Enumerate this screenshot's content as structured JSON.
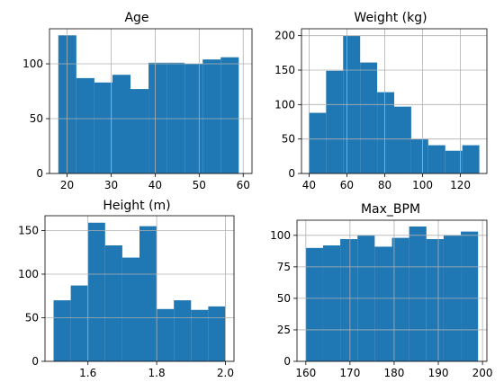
{
  "chart_data": [
    {
      "type": "bar",
      "title": "Age",
      "bin_edges": [
        18,
        22.1,
        26.2,
        30.3,
        34.4,
        38.5,
        42.6,
        46.7,
        50.8,
        54.9,
        59
      ],
      "values": [
        126,
        87,
        83,
        90,
        77,
        101,
        101,
        100,
        104,
        106
      ],
      "xlim": [
        16,
        62
      ],
      "ylim": [
        0,
        132
      ],
      "xticks": [
        20,
        30,
        40,
        50,
        60
      ],
      "yticks": [
        0,
        50,
        100
      ],
      "xticklabels": [
        "20",
        "30",
        "40",
        "50",
        "60"
      ],
      "yticklabels": [
        "0",
        "50",
        "100"
      ],
      "grid": true,
      "xlabel": "",
      "ylabel": ""
    },
    {
      "type": "bar",
      "title": "Weight (kg)",
      "bin_edges": [
        40,
        49,
        58,
        67,
        76,
        85,
        94,
        103,
        112,
        121,
        130
      ],
      "values": [
        88,
        149,
        200,
        161,
        118,
        97,
        50,
        41,
        33,
        41
      ],
      "xlim": [
        36,
        134
      ],
      "ylim": [
        0,
        210
      ],
      "xticks": [
        40,
        60,
        80,
        100,
        120
      ],
      "yticks": [
        0,
        50,
        100,
        150,
        200
      ],
      "xticklabels": [
        "40",
        "60",
        "80",
        "100",
        "120"
      ],
      "yticklabels": [
        "0",
        "50",
        "100",
        "150",
        "200"
      ],
      "grid": true,
      "xlabel": "",
      "ylabel": ""
    },
    {
      "type": "bar",
      "title": "Height (m)",
      "bin_edges": [
        1.5,
        1.55,
        1.6,
        1.65,
        1.7,
        1.75,
        1.8,
        1.85,
        1.9,
        1.95,
        2.0
      ],
      "values": [
        70,
        87,
        159,
        133,
        119,
        155,
        60,
        70,
        59,
        63
      ],
      "xlim": [
        1.475,
        2.025
      ],
      "ylim": [
        0,
        167
      ],
      "xticks": [
        1.6,
        1.8,
        2.0
      ],
      "yticks": [
        0,
        50,
        100,
        150
      ],
      "xticklabels": [
        "1.6",
        "1.8",
        "2.0"
      ],
      "yticklabels": [
        "0",
        "50",
        "100",
        "150"
      ],
      "grid": true,
      "xlabel": "",
      "ylabel": ""
    },
    {
      "type": "bar",
      "title": "Max_BPM",
      "bin_edges": [
        160,
        163.9,
        167.8,
        171.7,
        175.6,
        179.5,
        183.4,
        187.3,
        191.2,
        195.1,
        199
      ],
      "values": [
        90,
        92,
        97,
        100,
        91,
        98,
        107,
        97,
        100,
        103
      ],
      "xlim": [
        158,
        201
      ],
      "ylim": [
        0,
        112
      ],
      "xticks": [
        160,
        170,
        180,
        190,
        200
      ],
      "yticks": [
        0,
        25,
        50,
        75,
        100
      ],
      "xticklabels": [
        "160",
        "170",
        "180",
        "190",
        "200"
      ],
      "yticklabels": [
        "0",
        "25",
        "50",
        "75",
        "100"
      ],
      "grid": true,
      "xlabel": "",
      "ylabel": ""
    }
  ],
  "colors": {
    "bar": "#1f77b4",
    "grid": "#b0b0b0",
    "axis": "#000000"
  }
}
